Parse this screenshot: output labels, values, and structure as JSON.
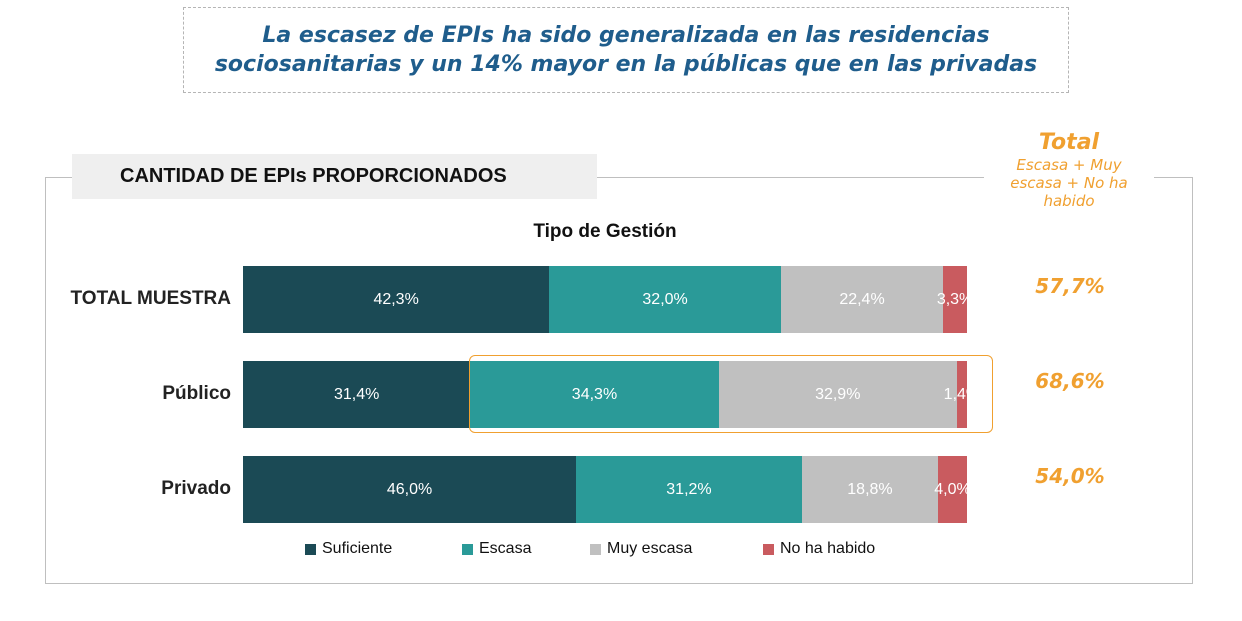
{
  "headline": {
    "line1": "La escasez de EPIs ha sido generalizada en las residencias",
    "line2": "sociosanitarias y un 14% mayor en la públicas que en las privadas"
  },
  "section_title": "CANTIDAD DE EPIs PROPORCIONADOS",
  "total_header": {
    "title": "Total",
    "subtitle": "Escasa + Muy escasa + No ha habido"
  },
  "colors": {
    "Suficiente": "#1b4a55",
    "Escasa": "#2a9a98",
    "Muy escasa": "#c0c0c0",
    "No ha habido": "#c95b5f",
    "highlight": "#f0a030"
  },
  "chart_data": {
    "type": "bar",
    "orientation": "horizontal",
    "stacked": true,
    "normalized": true,
    "title": "Tipo de Gestión",
    "categories": [
      "TOTAL MUESTRA",
      "Público",
      "Privado"
    ],
    "series": [
      {
        "name": "Suficiente",
        "values": [
          42.3,
          31.4,
          46.0
        ],
        "labels": [
          "42,3%",
          "31,4%",
          "46,0%"
        ]
      },
      {
        "name": "Escasa",
        "values": [
          32.0,
          34.3,
          31.2
        ],
        "labels": [
          "32,0%",
          "34,3%",
          "31,2%"
        ]
      },
      {
        "name": "Muy escasa",
        "values": [
          22.4,
          32.9,
          18.8
        ],
        "labels": [
          "22,4%",
          "32,9%",
          "18,8%"
        ]
      },
      {
        "name": "No ha habido",
        "values": [
          3.3,
          1.4,
          4.0
        ],
        "labels": [
          "3,3%",
          "1,4%",
          "4,0%"
        ]
      }
    ],
    "totals": [
      "57,7%",
      "68,6%",
      "54,0%"
    ],
    "highlighted_category": "Público",
    "legend_position": "bottom"
  }
}
